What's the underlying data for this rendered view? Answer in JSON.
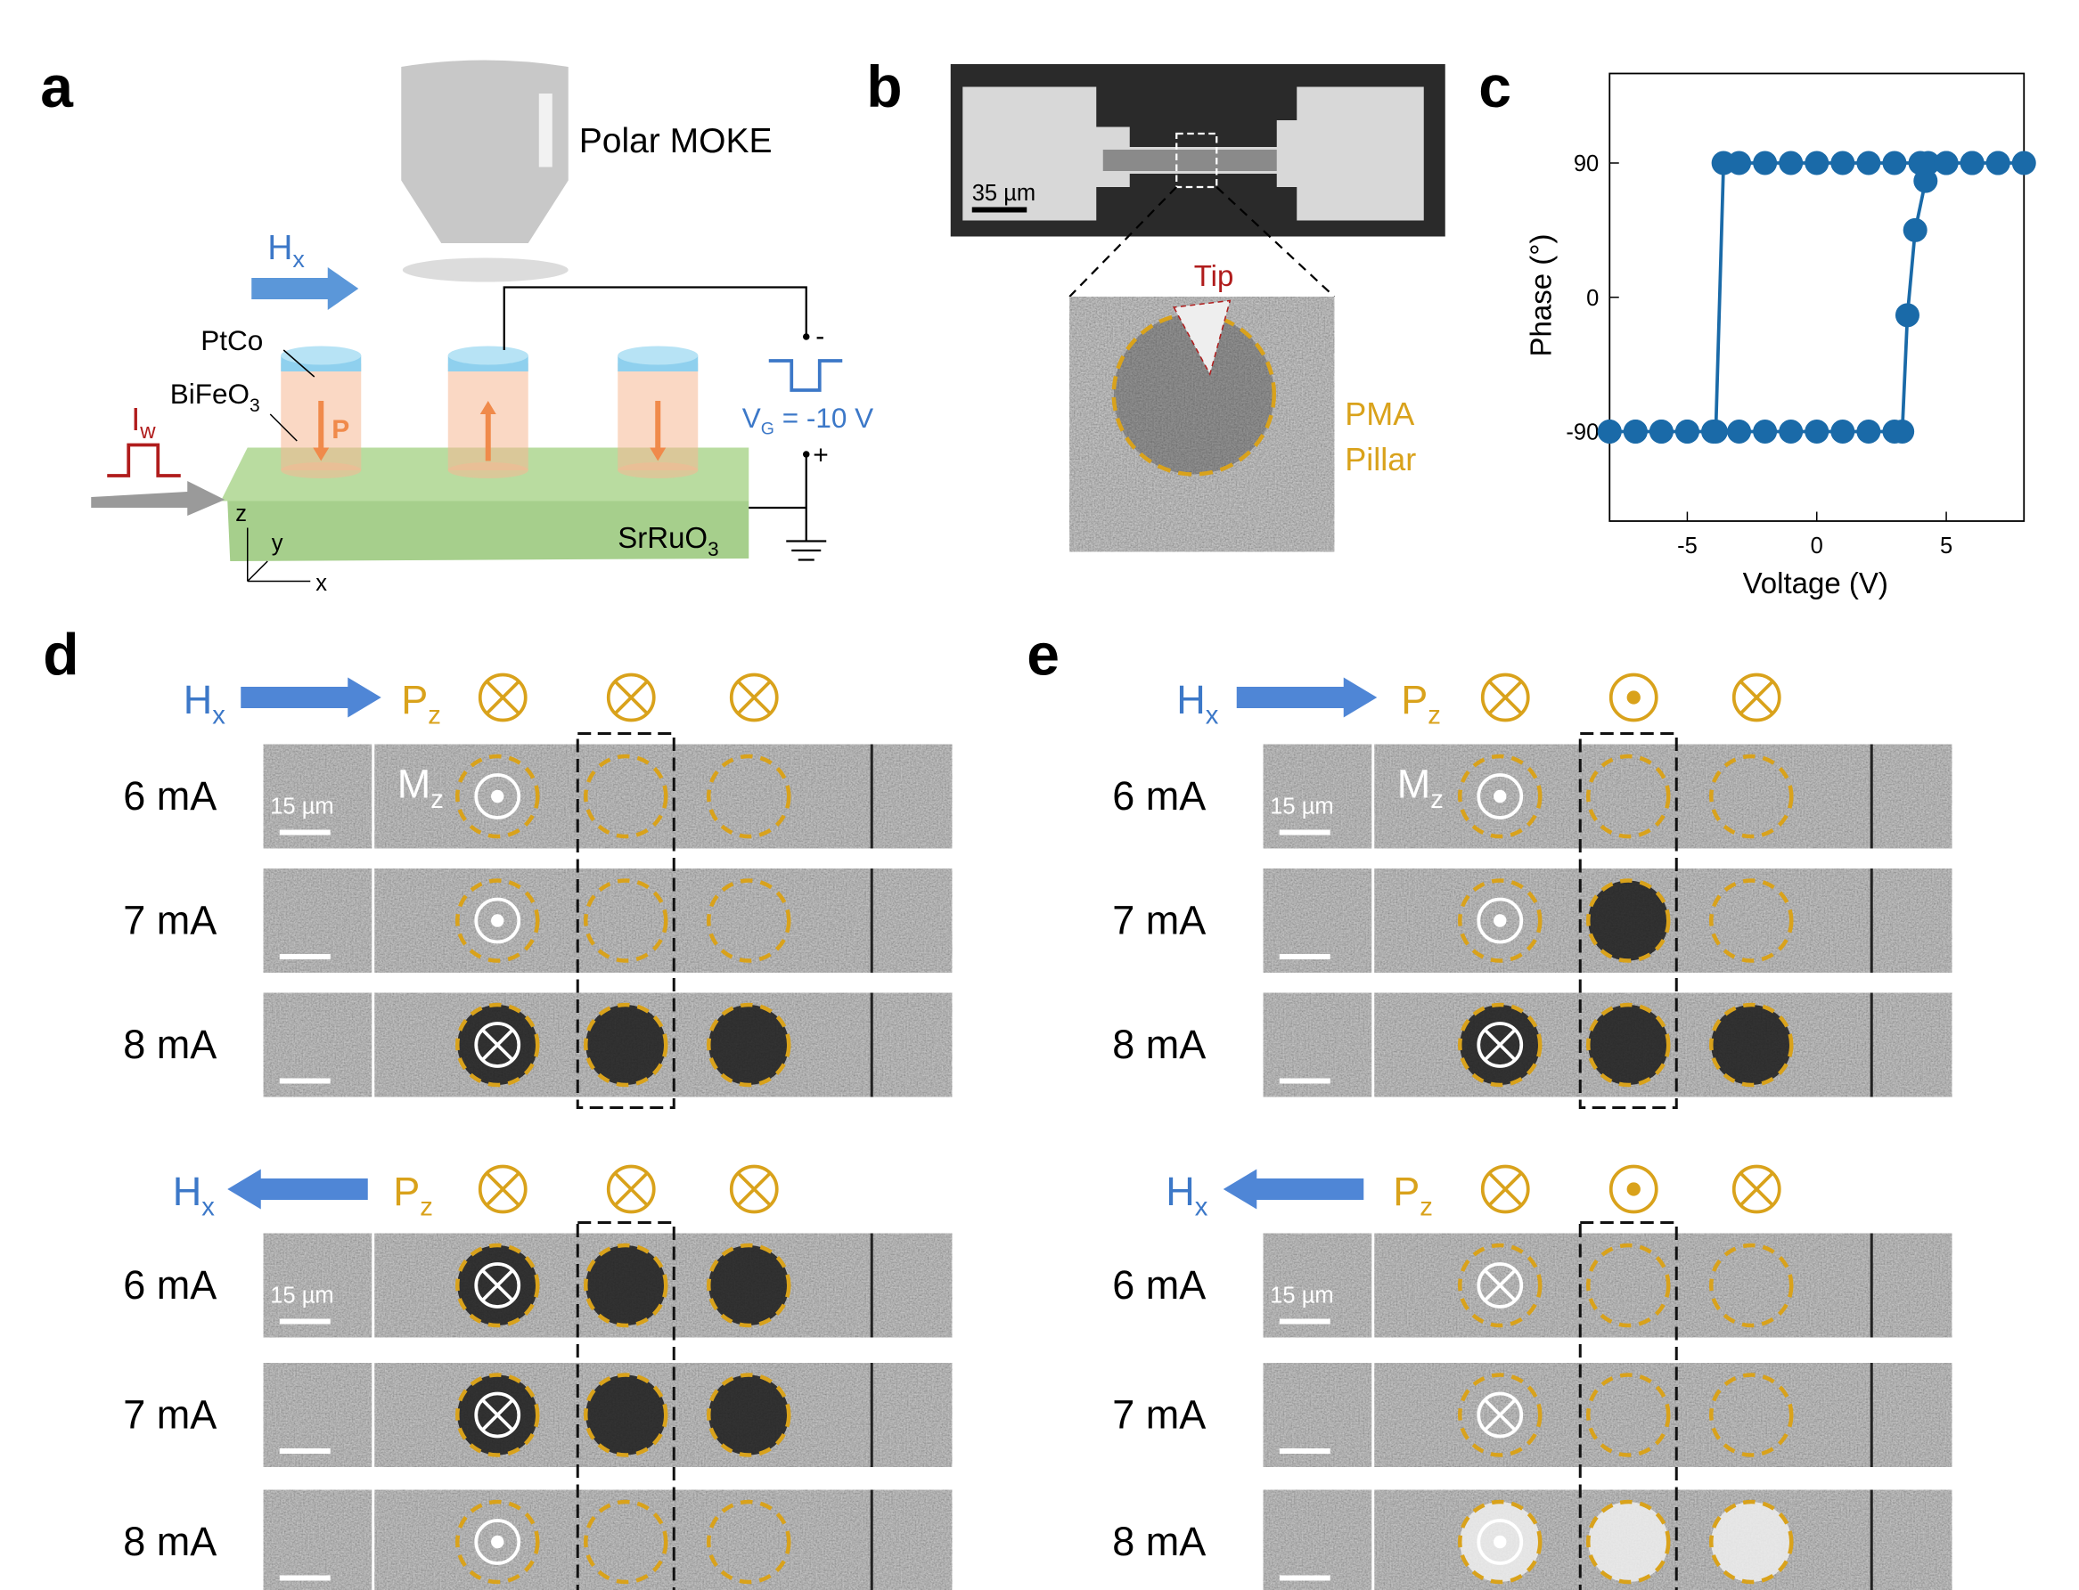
{
  "panel_labels": [
    "a",
    "b",
    "c",
    "d",
    "e"
  ],
  "panel_a": {
    "objective": "Polar MOKE",
    "field": {
      "main": "H",
      "sub": "x"
    },
    "top_layer": "PtCo",
    "ferro_layer": {
      "main": "BiFeO",
      "sub": "3"
    },
    "current": {
      "main": "I",
      "sub": "w"
    },
    "polarization": "P",
    "gate": {
      "main": "V",
      "sub": "G",
      "rest": " = -10 V"
    },
    "minus": "-",
    "plus": "+",
    "substrate": {
      "main": "SrRuO",
      "sub": "3"
    },
    "axes": [
      "z",
      "y",
      "x"
    ]
  },
  "panel_b": {
    "scale_bar": "35 µm",
    "tip": "Tip",
    "pillar": [
      "PMA",
      "Pillar"
    ]
  },
  "chart_data": {
    "type": "line",
    "xlabel": "Voltage (V)",
    "ylabel": "Phase (°)",
    "x": [
      -8,
      -7,
      -6,
      -5,
      -4,
      -3,
      -2,
      -1,
      0,
      1,
      2,
      3,
      3.3,
      3.5,
      3.8,
      4.2,
      4.3,
      5,
      6,
      7,
      8,
      7,
      6,
      5,
      4,
      3,
      2,
      1,
      0,
      -1,
      -2,
      -3,
      -3.6,
      -3.9,
      -5,
      -6,
      -7,
      -8
    ],
    "series": [
      {
        "name": "Phase",
        "color": "#1a6aa8",
        "values": [
          -90,
          -90,
          -90,
          -90,
          -90,
          -90,
          -90,
          -90,
          -90,
          -90,
          -90,
          -90,
          -90,
          -12,
          45,
          78,
          90,
          90,
          90,
          90,
          90,
          90,
          90,
          90,
          90,
          90,
          90,
          90,
          90,
          90,
          90,
          90,
          90,
          -90,
          -90,
          -90,
          -90,
          -90
        ]
      }
    ],
    "xlim": [
      -8,
      8
    ],
    "ylim": [
      -150,
      150
    ],
    "xticks": [
      -5,
      0,
      5
    ],
    "yticks": [
      -90,
      0,
      90
    ]
  },
  "panel_d": {
    "groups": [
      {
        "field": {
          "main": "H",
          "sub": "x"
        },
        "pol": {
          "main": "P",
          "sub": "z"
        },
        "mag": {
          "main": "M",
          "sub": "z"
        },
        "scale_bar": "15 µm",
        "rows": [
          "6 mA",
          "7 mA",
          "8 mA"
        ]
      },
      {
        "field": {
          "main": "H",
          "sub": "x"
        },
        "pol": {
          "main": "P",
          "sub": "z"
        },
        "scale_bar": "15 µm",
        "rows": [
          "6 mA",
          "7 mA",
          "8 mA"
        ]
      }
    ]
  },
  "panel_e": {
    "groups": [
      {
        "field": {
          "main": "H",
          "sub": "x"
        },
        "pol": {
          "main": "P",
          "sub": "z"
        },
        "mag": {
          "main": "M",
          "sub": "z"
        },
        "scale_bar": "15 µm",
        "rows": [
          "6 mA",
          "7 mA",
          "8 mA"
        ]
      },
      {
        "field": {
          "main": "H",
          "sub": "x"
        },
        "pol": {
          "main": "P",
          "sub": "z"
        },
        "scale_bar": "15 µm",
        "rows": [
          "6 mA",
          "7 mA",
          "8 mA"
        ]
      }
    ]
  }
}
